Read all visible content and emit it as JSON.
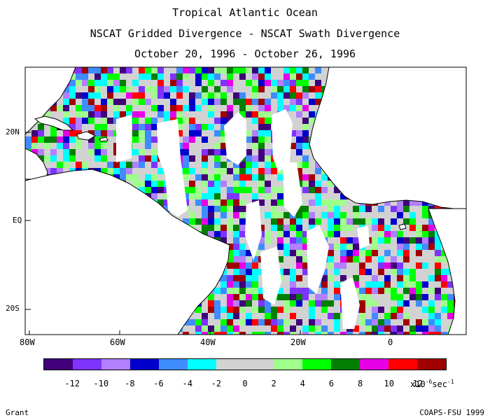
{
  "title": {
    "line1": "Tropical Atlantic Ocean",
    "line2": "NSCAT Gridded Divergence - NSCAT Swath Divergence",
    "line3": "October 20, 1996 - October 26, 1996"
  },
  "axes": {
    "lat_labels": [
      "20N",
      "EQ",
      "20S"
    ],
    "lon_labels": [
      "80W",
      "60W",
      "40W",
      "20W",
      "0"
    ]
  },
  "colorbar": {
    "colors": [
      "#3f0079",
      "#7f33ff",
      "#b27fff",
      "#0000cc",
      "#3f8cff",
      "#00ffff",
      "#d2d2d2",
      "#d2d2d2",
      "#9fff8c",
      "#00ff00",
      "#007f00",
      "#e600e6",
      "#ff0000",
      "#a00000"
    ],
    "labels": [
      "-12",
      "-10",
      "-8",
      "-6",
      "-4",
      "-2",
      "0",
      "2",
      "4",
      "6",
      "8",
      "10",
      "12"
    ],
    "units_prefix": "x10",
    "units_exp1": "-6",
    "units_mid": "sec",
    "units_exp2": "-1"
  },
  "credits": {
    "left": "Grant",
    "right": "COAPS-FSU 1999"
  }
}
